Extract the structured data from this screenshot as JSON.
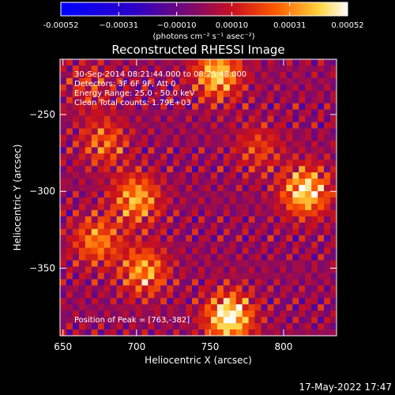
{
  "chart_data": {
    "type": "heatmap",
    "title": "Reconstructed RHESSI Image",
    "xlabel": "Heliocentric X (arcsec)",
    "ylabel": "Heliocentric Y (arcsec)",
    "xlim": [
      648,
      836
    ],
    "ylim": [
      -394,
      -214
    ],
    "x_ticks": [
      650,
      700,
      750,
      800
    ],
    "y_ticks": [
      -250,
      -300,
      -350
    ],
    "colorbar": {
      "range": [
        -0.00052,
        0.00052
      ],
      "tick_values": [
        -0.00052,
        -0.00031,
        -0.0001,
        0.0001,
        0.00031,
        0.00052
      ],
      "tick_labels": [
        "-0.00052",
        "−0.00031",
        "−0.00010",
        "0.00010",
        "0.00031",
        "0.00052"
      ],
      "unit_label": "(photons cm⁻² s⁻¹ asec⁻²)"
    },
    "annotations": [
      "30-Sep-2014 08:21:44.000 to 08:25:48.000",
      "Detectors: 3F 6F 9F, Att 0",
      "Energy Range: 25.0 - 50.0 keV",
      "Clean     Total counts: 1.79E+03"
    ],
    "peak_label": "Position of Peak = [763,-382]",
    "peak": [
      763,
      -382
    ],
    "sources": [
      {
        "x": 763,
        "y": -382,
        "amp": 0.00052
      },
      {
        "x": 755,
        "y": -224,
        "amp": 0.00042
      },
      {
        "x": 815,
        "y": -300,
        "amp": 0.00046
      },
      {
        "x": 700,
        "y": -305,
        "amp": 0.00036
      },
      {
        "x": 705,
        "y": -352,
        "amp": 0.00034
      },
      {
        "x": 673,
        "y": -332,
        "amp": 0.0003
      },
      {
        "x": 678,
        "y": -268,
        "amp": 0.00024
      },
      {
        "x": 783,
        "y": -272,
        "amp": 0.00018
      },
      {
        "x": 668,
        "y": -232,
        "amp": 0.00014
      }
    ]
  },
  "footer": {
    "timestamp": "17-May-2022 17:47"
  }
}
